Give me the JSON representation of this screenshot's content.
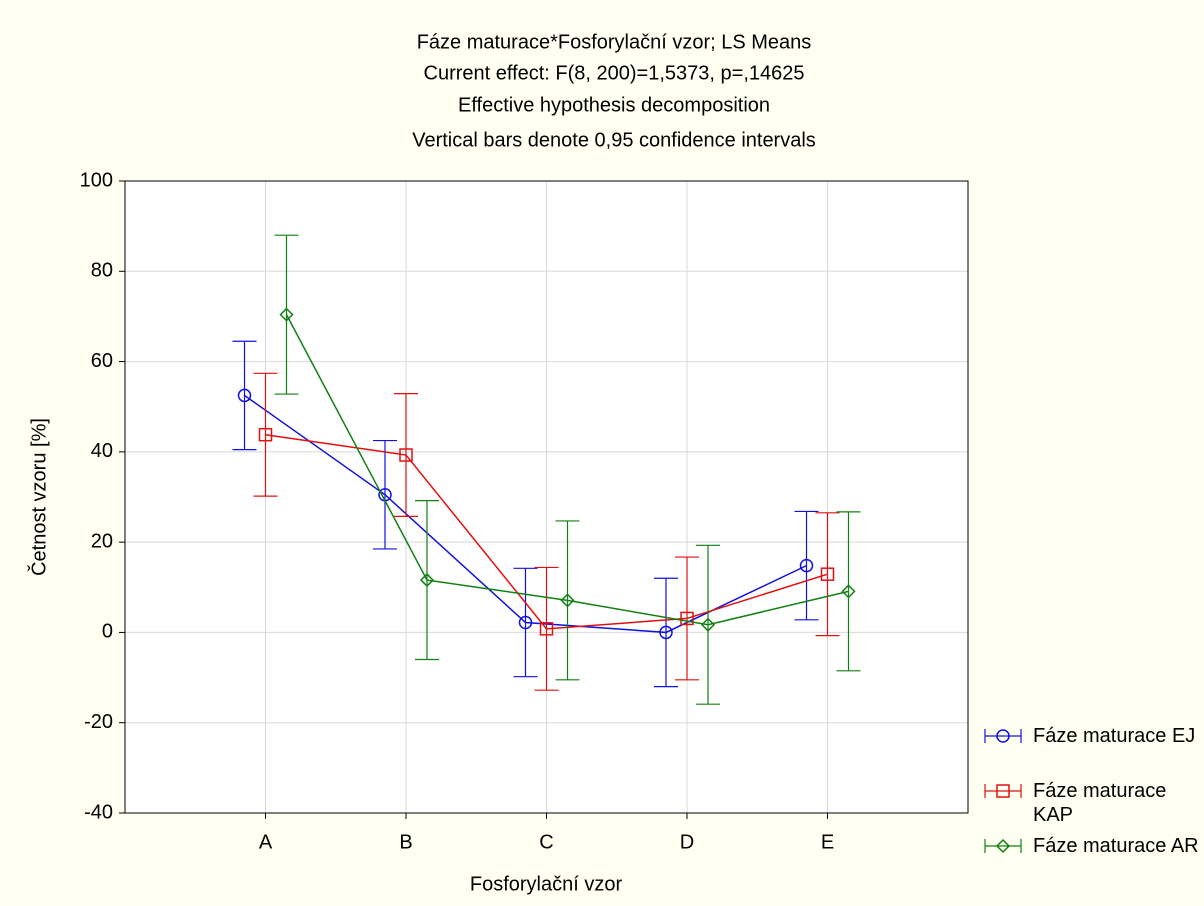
{
  "chart_data": {
    "type": "errorbar-line",
    "title": "Fáze maturace*Fosforylační vzor; LS Means",
    "subtitle": [
      "Current effect: F(8, 200)=1,5373, p=,14625",
      "Effective hypothesis decomposition",
      "Vertical bars denote 0,95 confidence intervals"
    ],
    "x_label": "Fosforylační vzor",
    "y_label": "Četnost vzoru [%]",
    "categories": [
      "A",
      "B",
      "C",
      "D",
      "E"
    ],
    "series": [
      {
        "name": "Fáze maturace EJ",
        "color": "#1010e0",
        "marker": "circle",
        "values": [
          52.5,
          30.5,
          2.2,
          0,
          14.8
        ],
        "errors": [
          12,
          12,
          12,
          12,
          12
        ]
      },
      {
        "name": "Fáze maturace KAP",
        "color": "#e01010",
        "marker": "square",
        "values": [
          43.8,
          39.3,
          0.8,
          3.1,
          12.9
        ],
        "errors": [
          13.6,
          13.6,
          13.6,
          13.6,
          13.6
        ]
      },
      {
        "name": "Fáze maturace AR",
        "color": "#108010",
        "marker": "diamond",
        "values": [
          70.4,
          11.6,
          7.1,
          1.7,
          9.1
        ],
        "errors": [
          17.6,
          17.6,
          17.6,
          17.6,
          17.6
        ]
      }
    ],
    "ylim": [
      -40,
      100
    ],
    "yticks": [
      -40,
      -20,
      0,
      20,
      40,
      60,
      80,
      100
    ],
    "grid": true,
    "legend": "right"
  }
}
